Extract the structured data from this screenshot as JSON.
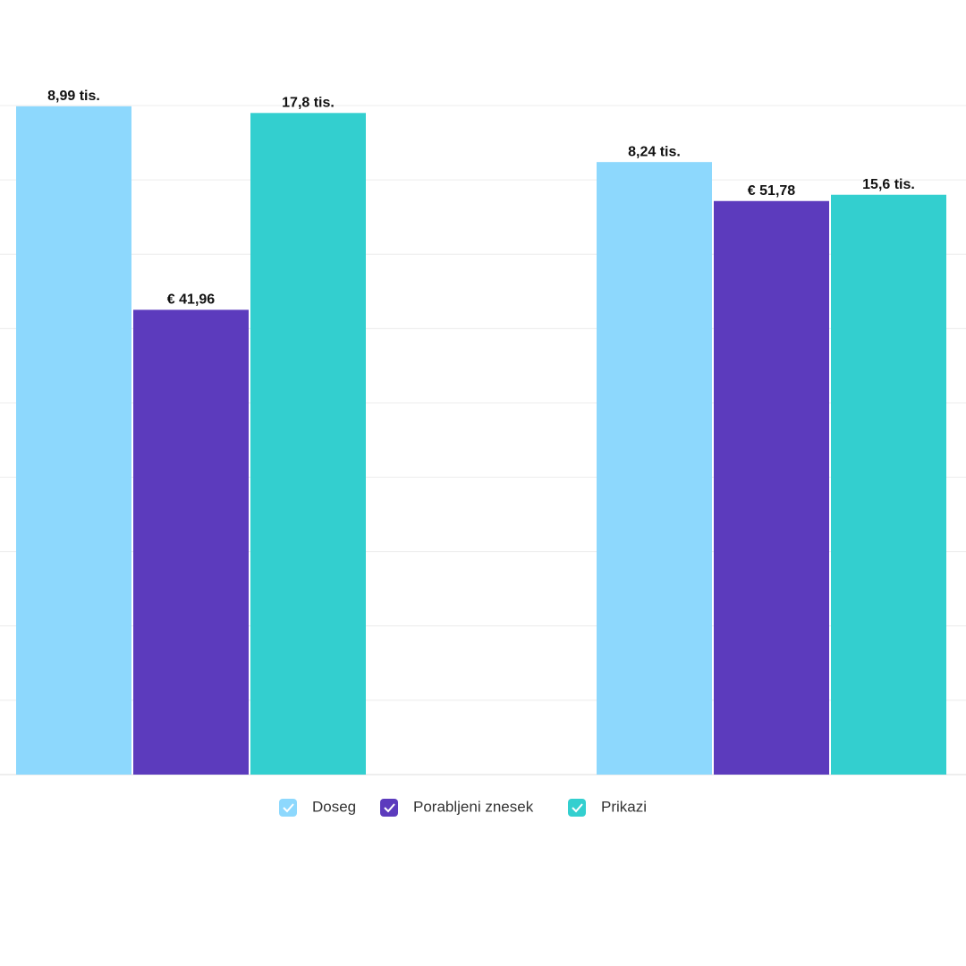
{
  "chart_data": {
    "type": "bar",
    "categories": [
      null,
      null
    ],
    "series": [
      {
        "name": "Doseg",
        "color": "#8dd8fd",
        "values": [
          8.99,
          8.24
        ],
        "value_labels": [
          "8,99 tis.",
          "8,24 tis."
        ],
        "ylim": [
          0,
          9.0
        ]
      },
      {
        "name": "Porabljeni znesek",
        "color": "#5c3bbd",
        "values": [
          41.96,
          51.78
        ],
        "value_labels": [
          "€ 41,96",
          "€ 51,78"
        ],
        "ylim": [
          0,
          60.4
        ]
      },
      {
        "name": "Prikazi",
        "color": "#33cfcf",
        "values": [
          17.8,
          15.6
        ],
        "value_labels": [
          "17,8 tis.",
          "15,6 tis."
        ],
        "ylim": [
          0,
          18.0
        ]
      }
    ],
    "grid": true
  }
}
